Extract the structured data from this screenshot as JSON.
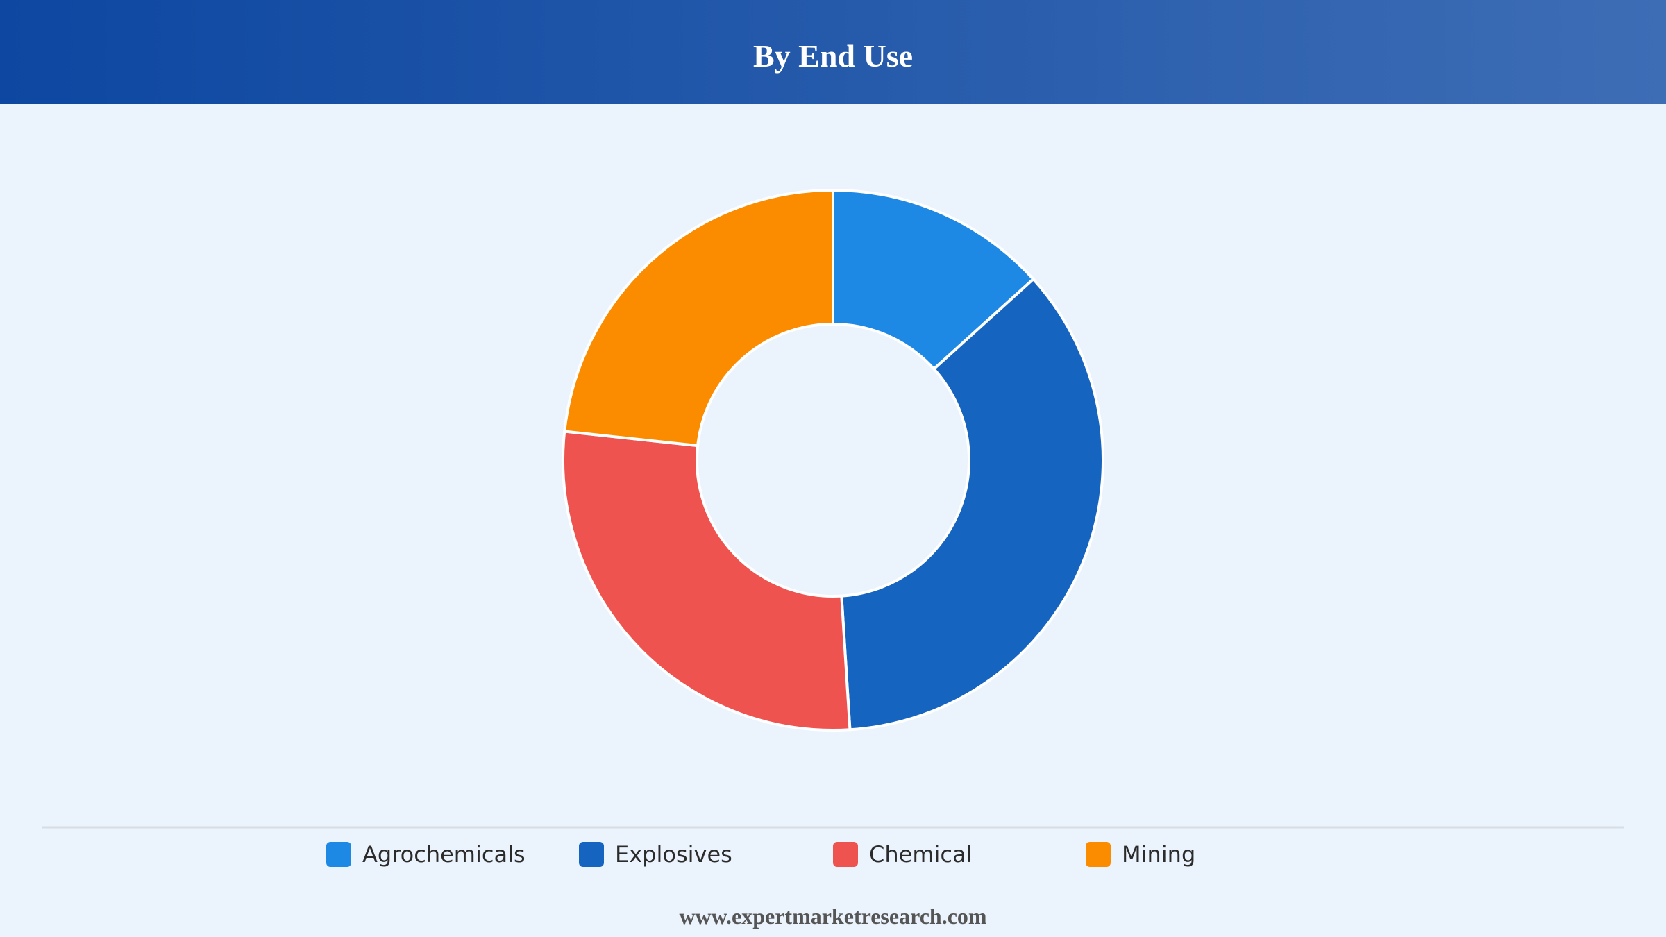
{
  "chart_data": {
    "type": "donut",
    "title": "By End Use",
    "categories": [
      "Agrochemicals",
      "Explosives",
      "Chemical",
      "Mining"
    ],
    "values": [
      13.3,
      35.7,
      27.7,
      23.3
    ],
    "colors": [
      "#1e88e5",
      "#1565c0",
      "#ef5350",
      "#fb8c00"
    ],
    "legend": "bottom"
  },
  "footer": "www.expertmarketresearch.com"
}
